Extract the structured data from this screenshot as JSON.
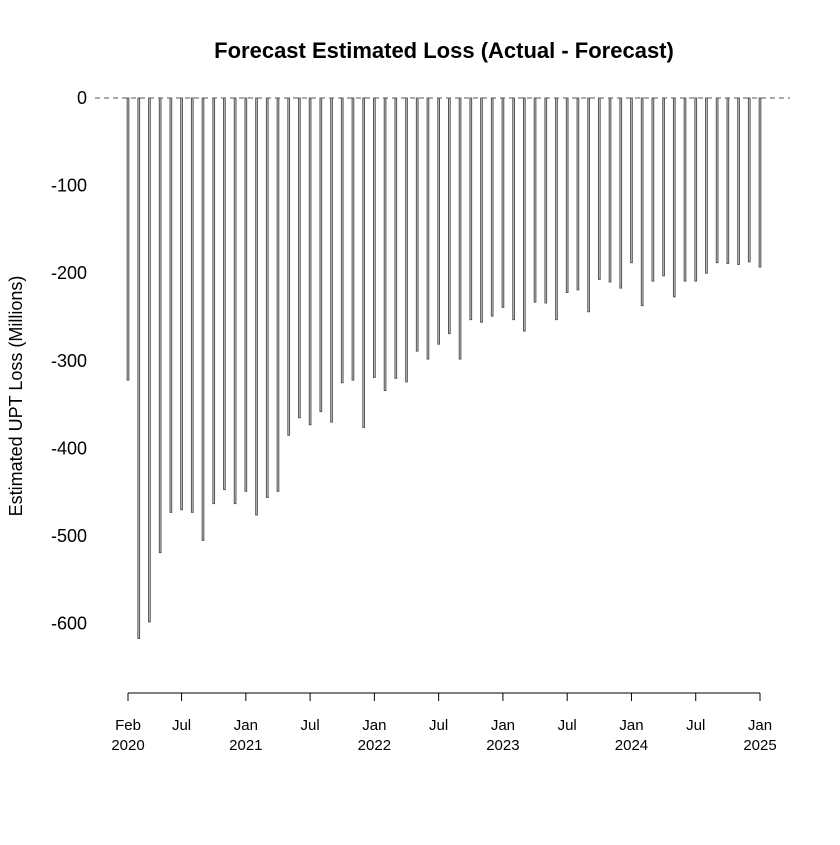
{
  "chart_data": {
    "type": "bar",
    "title": "Forecast Estimated Loss (Actual - Forecast)",
    "xlabel": "",
    "ylabel": "Estimated UPT Loss (Millions)",
    "ylim": [
      -680,
      0
    ],
    "yticks": [
      0,
      -100,
      -200,
      -300,
      -400,
      -500,
      -600
    ],
    "x_range": [
      "2020-02",
      "2025-01"
    ],
    "reference_line": {
      "y": 0,
      "style": "dashed"
    },
    "grid": false,
    "bar_fill": "#d3d3d3",
    "bar_stroke": "#555555",
    "xticks": [
      {
        "date": "2020-02",
        "line1": "Feb",
        "line2": "2020"
      },
      {
        "date": "2020-07",
        "line1": "Jul",
        "line2": ""
      },
      {
        "date": "2021-01",
        "line1": "Jan",
        "line2": "2021"
      },
      {
        "date": "2021-07",
        "line1": "Jul",
        "line2": ""
      },
      {
        "date": "2022-01",
        "line1": "Jan",
        "line2": "2022"
      },
      {
        "date": "2022-07",
        "line1": "Jul",
        "line2": ""
      },
      {
        "date": "2023-01",
        "line1": "Jan",
        "line2": "2023"
      },
      {
        "date": "2023-07",
        "line1": "Jul",
        "line2": ""
      },
      {
        "date": "2024-01",
        "line1": "Jan",
        "line2": "2024"
      },
      {
        "date": "2024-07",
        "line1": "Jul",
        "line2": ""
      },
      {
        "date": "2025-01",
        "line1": "Jan",
        "line2": "2025"
      }
    ],
    "categories": [
      "2020-02",
      "2020-03",
      "2020-04",
      "2020-05",
      "2020-06",
      "2020-07",
      "2020-08",
      "2020-09",
      "2020-10",
      "2020-11",
      "2020-12",
      "2021-01",
      "2021-02",
      "2021-03",
      "2021-04",
      "2021-05",
      "2021-06",
      "2021-07",
      "2021-08",
      "2021-09",
      "2021-10",
      "2021-11",
      "2021-12",
      "2022-01",
      "2022-02",
      "2022-03",
      "2022-04",
      "2022-05",
      "2022-06",
      "2022-07",
      "2022-08",
      "2022-09",
      "2022-10",
      "2022-11",
      "2022-12",
      "2023-01",
      "2023-02",
      "2023-03",
      "2023-04",
      "2023-05",
      "2023-06",
      "2023-07",
      "2023-08",
      "2023-09",
      "2023-10",
      "2023-11",
      "2023-12",
      "2024-01",
      "2024-02",
      "2024-03",
      "2024-04",
      "2024-05",
      "2024-06",
      "2024-07",
      "2024-08",
      "2024-09",
      "2024-10",
      "2024-11",
      "2024-12",
      "2025-01"
    ],
    "values": [
      -322,
      -617,
      -598,
      -519,
      -473,
      -470,
      -473,
      -505,
      -463,
      -447,
      -463,
      -449,
      -476,
      -456,
      -449,
      -385,
      -365,
      -373,
      -358,
      -370,
      -325,
      -322,
      -376,
      -319,
      -334,
      -320,
      -324,
      -289,
      -298,
      -281,
      -269,
      -298,
      -253,
      -256,
      -249,
      -239,
      -253,
      -266,
      -233,
      -234,
      -253,
      -222,
      -219,
      -244,
      -207,
      -210,
      -217,
      -188,
      -237,
      -209,
      -203,
      -227,
      -209,
      -209,
      -200,
      -188,
      -189,
      -190,
      -187,
      -193
    ]
  }
}
